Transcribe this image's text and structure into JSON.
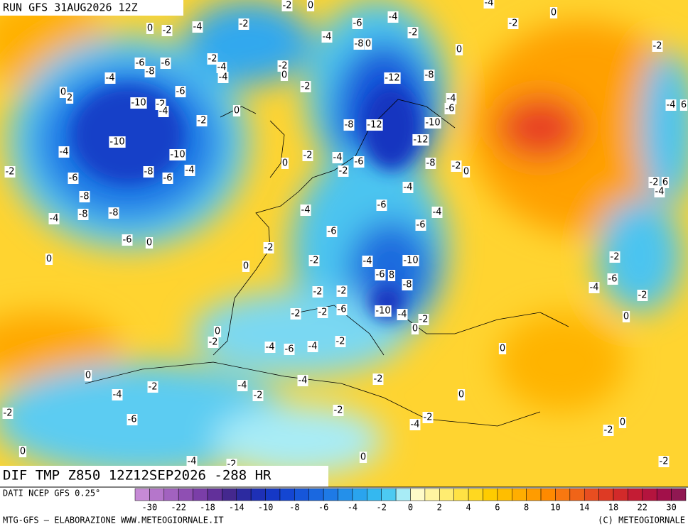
{
  "header": {
    "title": "RUN GFS 31AUG2026 12Z"
  },
  "footer": {
    "product": "DIF TMP Z850 12Z12SEP2026 -288 HR",
    "source": "DATI NCEP GFS 0.25°",
    "credit": "MTG-GFS — ELABORAZIONE WWW.METEOGIORNALE.IT",
    "copyright": "(C) METEOGIORNALE"
  },
  "colorbar": {
    "colors": [
      "#c68ad6",
      "#b576cb",
      "#a262bf",
      "#8f4fb3",
      "#7b3ea8",
      "#62309a",
      "#44288e",
      "#2c2aa0",
      "#1e30b6",
      "#1538c6",
      "#1446d2",
      "#1656da",
      "#1a68e0",
      "#1e7ae6",
      "#2490ea",
      "#2aa4ee",
      "#34b8f0",
      "#4ccaf2",
      "#a8ecf6",
      "#fffbc8",
      "#fff4a0",
      "#ffec70",
      "#ffe244",
      "#ffd820",
      "#ffcc00",
      "#ffbe00",
      "#ffae00",
      "#ff9c00",
      "#ff8a00",
      "#f87810",
      "#f06418",
      "#e84e20",
      "#de3a24",
      "#d22a2a",
      "#c41c34",
      "#b4143e",
      "#a2104a",
      "#901852"
    ],
    "labels": [
      -30,
      -22,
      -18,
      -14,
      -10,
      -8,
      -6,
      -4,
      -2,
      0,
      2,
      4,
      6,
      8,
      10,
      14,
      18,
      22,
      30
    ]
  },
  "map": {
    "labels": [
      -2,
      0,
      -4,
      -4,
      -6,
      -2,
      -2,
      -2,
      0,
      -4,
      -2,
      -4,
      -8,
      0,
      -4,
      -6,
      -8,
      -6,
      -2,
      -4,
      -4,
      -2,
      0,
      -2,
      0,
      -12,
      -8,
      -4,
      -6,
      -10,
      -2,
      -4,
      -6,
      0,
      2,
      0,
      -2,
      -10,
      -10,
      -4,
      -2,
      -8,
      -6,
      -4,
      -6,
      -8,
      -8,
      -8,
      -4,
      -6,
      0,
      0,
      0,
      -2,
      0,
      -2,
      -4,
      -2,
      -6,
      -8,
      -12,
      -10,
      -12,
      -8,
      -2,
      0,
      -4,
      -6,
      -4,
      -6,
      -6,
      -4,
      -2,
      -4,
      -10,
      -6,
      8,
      -8,
      -2,
      -2,
      -2,
      -2,
      -6,
      -10,
      -4,
      -2,
      0,
      0,
      -2,
      -4,
      -6,
      -4,
      -2,
      0,
      0,
      -4,
      -4,
      -2,
      -2,
      -4,
      -2,
      -6,
      -2,
      -2,
      0,
      -4,
      -2,
      -2,
      0,
      0,
      -4,
      -2,
      0,
      -2,
      0,
      -2,
      -4,
      6,
      -2,
      6,
      -4,
      -2,
      -6,
      -4,
      -2,
      0
    ]
  }
}
